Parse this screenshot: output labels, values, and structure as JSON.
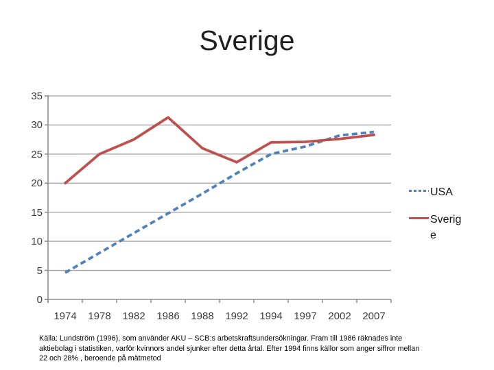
{
  "slide": {
    "title": "Sverige"
  },
  "colors": {
    "usa_line": "#4F81BD",
    "sverige_line": "#C0504D",
    "gridline": "#9e9e9e",
    "axis": "#8f8f8f",
    "tick_text": "#3d3d3d"
  },
  "chart_data": {
    "type": "line",
    "title": "Sverige",
    "categories": [
      "1974",
      "1978",
      "1982",
      "1986",
      "1988",
      "1992",
      "1994",
      "1997",
      "2002",
      "2007"
    ],
    "series": [
      {
        "name": "USA",
        "style": "dashed",
        "color": "#4F81BD",
        "values": [
          4.6,
          8.0,
          11.4,
          14.8,
          18.2,
          21.7,
          25.0,
          26.3,
          28.2,
          28.8
        ]
      },
      {
        "name": "Sverige",
        "style": "solid",
        "color": "#C0504D",
        "values": [
          20.0,
          25.0,
          27.5,
          31.3,
          26.0,
          23.6,
          27.0,
          27.1,
          27.6,
          28.3
        ]
      }
    ],
    "xlabel": "",
    "ylabel": "",
    "y_ticks": [
      0,
      5,
      10,
      15,
      20,
      25,
      30,
      35
    ],
    "ylim": [
      0,
      35
    ],
    "grid": "horizontal",
    "legend_position": "right"
  },
  "footnote": {
    "lines": [
      "Källa: Lundström (1996), som använder AKU – SCB:s arbetskraftsundersökningar. Fram till 1986 räknades inte",
      "aktiebolag i statistiken, varför kvinnors andel sjunker efter detta årtal. Efter 1994 finns källor som anger siffror mellan",
      "22 och 28% , beroende på mätmetod"
    ]
  }
}
